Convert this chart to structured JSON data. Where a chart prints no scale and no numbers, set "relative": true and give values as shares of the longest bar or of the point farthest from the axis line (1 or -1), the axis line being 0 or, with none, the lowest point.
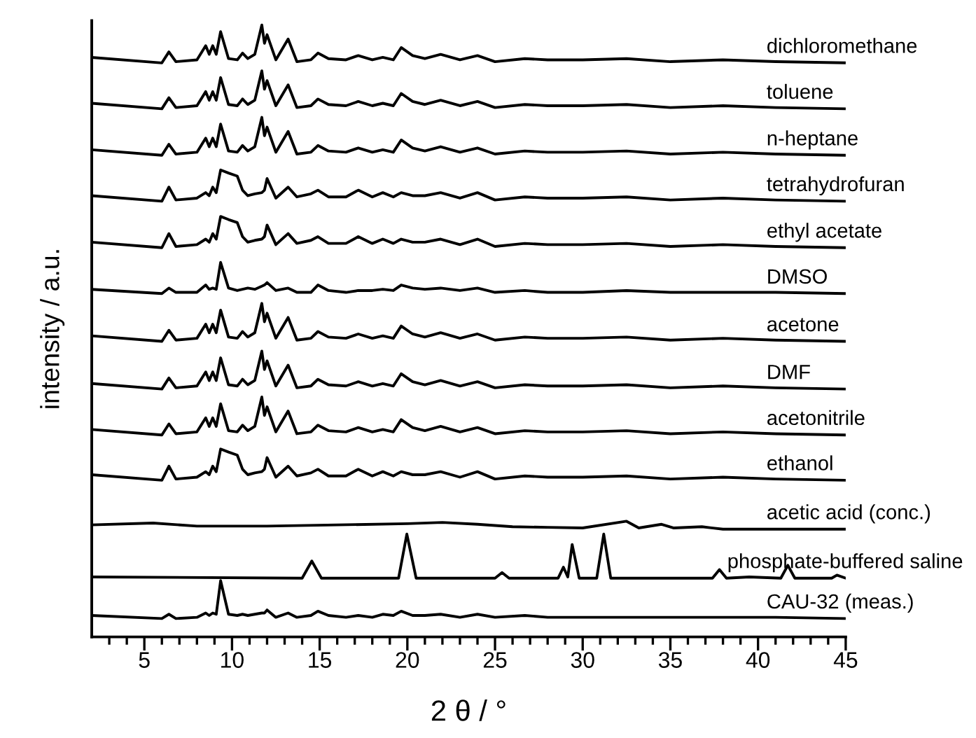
{
  "chart_data": {
    "type": "line",
    "relative": true,
    "xlabel": "2 θ / °",
    "ylabel": "intensity / a.u.",
    "xlim": [
      2,
      45
    ],
    "xticks": [
      {
        "value": 3,
        "label": null
      },
      {
        "value": 4,
        "label": null
      },
      5,
      {
        "value": 6,
        "label": null
      },
      {
        "value": 7,
        "label": null
      },
      {
        "value": 8,
        "label": null
      },
      {
        "value": 9,
        "label": null
      },
      10,
      {
        "value": 11,
        "label": null
      },
      {
        "value": 12,
        "label": null
      },
      {
        "value": 13,
        "label": null
      },
      {
        "value": 14,
        "label": null
      },
      15,
      {
        "value": 16,
        "label": null
      },
      {
        "value": 17,
        "label": null
      },
      {
        "value": 18,
        "label": null
      },
      {
        "value": 19,
        "label": null
      },
      20,
      {
        "value": 21,
        "label": null
      },
      {
        "value": 22,
        "label": null
      },
      {
        "value": 23,
        "label": null
      },
      {
        "value": 24,
        "label": null
      },
      25,
      {
        "value": 26,
        "label": null
      },
      {
        "value": 27,
        "label": null
      },
      {
        "value": 28,
        "label": null
      },
      {
        "value": 29,
        "label": null
      },
      30,
      {
        "value": 31,
        "label": null
      },
      {
        "value": 32,
        "label": null
      },
      {
        "value": 33,
        "label": null
      },
      {
        "value": 34,
        "label": null
      },
      35,
      {
        "value": 36,
        "label": null
      },
      {
        "value": 37,
        "label": null
      },
      {
        "value": 38,
        "label": null
      },
      {
        "value": 39,
        "label": null
      },
      40,
      {
        "value": 41,
        "label": null
      },
      {
        "value": 42,
        "label": null
      },
      {
        "value": 43,
        "label": null
      },
      {
        "value": 44,
        "label": null
      },
      45
    ],
    "x": [
      2,
      6.0,
      6.4,
      6.8,
      8.0,
      8.5,
      8.7,
      8.9,
      9.1,
      9.35,
      9.8,
      10.3,
      10.6,
      10.9,
      11.3,
      11.7,
      11.85,
      12.0,
      12.5,
      13.2,
      13.7,
      14.5,
      14.9,
      15.5,
      16.5,
      17.2,
      18.0,
      18.6,
      19.2,
      19.65,
      20.3,
      21.0,
      21.9,
      23.0,
      24.0,
      25.0,
      26.7,
      28.0,
      30.0,
      32.5,
      35.0,
      38.0,
      41.0,
      45.0
    ],
    "series": [
      {
        "name": "dichloromethane",
        "color": "#000000",
        "values": [
          0.947,
          0.938,
          0.956,
          0.94,
          0.943,
          0.966,
          0.952,
          0.966,
          0.952,
          0.989,
          0.945,
          0.943,
          0.954,
          0.945,
          0.952,
          1.0,
          0.97,
          0.984,
          0.943,
          0.977,
          0.94,
          0.943,
          0.954,
          0.945,
          0.943,
          0.95,
          0.943,
          0.947,
          0.943,
          0.963,
          0.95,
          0.945,
          0.952,
          0.943,
          0.95,
          0.94,
          0.945,
          0.943,
          0.943,
          0.945,
          0.94,
          0.943,
          0.94,
          0.938
        ]
      },
      {
        "name": "toluene",
        "color": "#000000",
        "values": [
          0.872,
          0.863,
          0.881,
          0.865,
          0.868,
          0.891,
          0.877,
          0.891,
          0.877,
          0.914,
          0.87,
          0.868,
          0.879,
          0.87,
          0.877,
          0.925,
          0.895,
          0.909,
          0.868,
          0.902,
          0.865,
          0.868,
          0.879,
          0.87,
          0.868,
          0.875,
          0.868,
          0.872,
          0.868,
          0.888,
          0.875,
          0.87,
          0.877,
          0.868,
          0.875,
          0.865,
          0.87,
          0.868,
          0.868,
          0.87,
          0.865,
          0.868,
          0.865,
          0.863
        ]
      },
      {
        "name": "n-heptane",
        "color": "#000000",
        "values": [
          0.796,
          0.787,
          0.805,
          0.789,
          0.792,
          0.815,
          0.801,
          0.815,
          0.801,
          0.838,
          0.794,
          0.792,
          0.803,
          0.794,
          0.801,
          0.849,
          0.819,
          0.833,
          0.792,
          0.826,
          0.789,
          0.792,
          0.803,
          0.794,
          0.792,
          0.799,
          0.792,
          0.796,
          0.792,
          0.812,
          0.799,
          0.794,
          0.801,
          0.792,
          0.799,
          0.789,
          0.794,
          0.792,
          0.792,
          0.794,
          0.789,
          0.792,
          0.789,
          0.787
        ]
      },
      {
        "name": "tetrahydrofuran",
        "color": "#000000",
        "values": [
          0.721,
          0.712,
          0.735,
          0.714,
          0.717,
          0.726,
          0.721,
          0.735,
          0.726,
          0.763,
          0.758,
          0.753,
          0.73,
          0.721,
          0.724,
          0.726,
          0.73,
          0.749,
          0.717,
          0.735,
          0.719,
          0.724,
          0.73,
          0.719,
          0.719,
          0.73,
          0.719,
          0.726,
          0.719,
          0.726,
          0.721,
          0.721,
          0.726,
          0.717,
          0.726,
          0.714,
          0.719,
          0.717,
          0.717,
          0.719,
          0.714,
          0.717,
          0.714,
          0.712
        ]
      },
      {
        "name": "ethyl acetate",
        "color": "#000000",
        "values": [
          0.645,
          0.636,
          0.659,
          0.638,
          0.641,
          0.65,
          0.645,
          0.659,
          0.65,
          0.687,
          0.682,
          0.677,
          0.654,
          0.645,
          0.648,
          0.65,
          0.654,
          0.673,
          0.641,
          0.659,
          0.643,
          0.648,
          0.654,
          0.643,
          0.643,
          0.654,
          0.643,
          0.65,
          0.643,
          0.65,
          0.645,
          0.645,
          0.65,
          0.641,
          0.65,
          0.638,
          0.643,
          0.641,
          0.641,
          0.643,
          0.638,
          0.641,
          0.638,
          0.636
        ]
      },
      {
        "name": "DMSO",
        "color": "#000000",
        "values": [
          0.568,
          0.561,
          0.57,
          0.563,
          0.563,
          0.575,
          0.568,
          0.57,
          0.568,
          0.612,
          0.57,
          0.566,
          0.568,
          0.57,
          0.568,
          0.573,
          0.575,
          0.579,
          0.566,
          0.57,
          0.563,
          0.563,
          0.575,
          0.566,
          0.563,
          0.566,
          0.566,
          0.568,
          0.566,
          0.575,
          0.57,
          0.568,
          0.57,
          0.566,
          0.57,
          0.563,
          0.566,
          0.563,
          0.563,
          0.566,
          0.563,
          0.563,
          0.563,
          0.561
        ]
      },
      {
        "name": "acetone",
        "color": "#000000",
        "values": [
          0.492,
          0.483,
          0.501,
          0.485,
          0.488,
          0.511,
          0.497,
          0.511,
          0.497,
          0.534,
          0.49,
          0.488,
          0.499,
          0.49,
          0.497,
          0.545,
          0.515,
          0.529,
          0.488,
          0.522,
          0.485,
          0.488,
          0.499,
          0.49,
          0.488,
          0.495,
          0.488,
          0.492,
          0.488,
          0.508,
          0.495,
          0.49,
          0.497,
          0.488,
          0.495,
          0.485,
          0.49,
          0.488,
          0.488,
          0.49,
          0.485,
          0.488,
          0.485,
          0.483
        ]
      },
      {
        "name": "DMF",
        "color": "#000000",
        "values": [
          0.414,
          0.405,
          0.423,
          0.407,
          0.41,
          0.433,
          0.419,
          0.433,
          0.419,
          0.456,
          0.412,
          0.41,
          0.421,
          0.412,
          0.419,
          0.467,
          0.437,
          0.451,
          0.41,
          0.444,
          0.407,
          0.41,
          0.421,
          0.412,
          0.41,
          0.417,
          0.41,
          0.414,
          0.41,
          0.43,
          0.417,
          0.412,
          0.419,
          0.41,
          0.417,
          0.407,
          0.412,
          0.41,
          0.41,
          0.412,
          0.407,
          0.41,
          0.407,
          0.405
        ]
      },
      {
        "name": "acetonitrile",
        "color": "#000000",
        "values": [
          0.339,
          0.33,
          0.348,
          0.332,
          0.335,
          0.358,
          0.344,
          0.358,
          0.344,
          0.381,
          0.337,
          0.335,
          0.346,
          0.337,
          0.344,
          0.392,
          0.362,
          0.376,
          0.335,
          0.369,
          0.332,
          0.335,
          0.346,
          0.337,
          0.335,
          0.342,
          0.335,
          0.339,
          0.335,
          0.355,
          0.342,
          0.337,
          0.344,
          0.335,
          0.342,
          0.332,
          0.337,
          0.335,
          0.335,
          0.337,
          0.332,
          0.335,
          0.332,
          0.33
        ]
      },
      {
        "name": "ethanol",
        "color": "#000000",
        "values": [
          0.265,
          0.256,
          0.279,
          0.258,
          0.261,
          0.27,
          0.265,
          0.279,
          0.27,
          0.307,
          0.302,
          0.297,
          0.274,
          0.265,
          0.268,
          0.27,
          0.274,
          0.293,
          0.261,
          0.279,
          0.263,
          0.268,
          0.274,
          0.263,
          0.263,
          0.274,
          0.263,
          0.27,
          0.263,
          0.27,
          0.265,
          0.265,
          0.27,
          0.261,
          0.27,
          0.258,
          0.263,
          0.261,
          0.261,
          0.263,
          0.258,
          0.261,
          0.258,
          0.256
        ]
      },
      {
        "name": "acetic acid (conc.)",
        "color": "#000000",
        "x": [
          2,
          5.5,
          8,
          12,
          16,
          20,
          22,
          24,
          26,
          28,
          30,
          32.5,
          33.2,
          34.5,
          35.2,
          36.8,
          38,
          41,
          45
        ],
        "values": [
          0.183,
          0.186,
          0.181,
          0.181,
          0.183,
          0.185,
          0.187,
          0.184,
          0.18,
          0.179,
          0.178,
          0.189,
          0.178,
          0.184,
          0.178,
          0.18,
          0.176,
          0.176,
          0.176
        ]
      },
      {
        "name": "phosphate-buffered saline",
        "color": "#000000",
        "x": [
          2,
          14.0,
          14.55,
          15.1,
          19.5,
          19.97,
          20.5,
          25.0,
          25.4,
          25.8,
          28.6,
          28.9,
          29.15,
          29.4,
          29.8,
          30.8,
          31.2,
          31.6,
          37.4,
          37.8,
          38.2,
          39.5,
          41.3,
          41.7,
          42.1,
          44.2,
          44.5,
          45
        ],
        "values": [
          0.098,
          0.096,
          0.124,
          0.096,
          0.096,
          0.168,
          0.096,
          0.096,
          0.105,
          0.096,
          0.096,
          0.114,
          0.098,
          0.151,
          0.096,
          0.096,
          0.168,
          0.096,
          0.096,
          0.11,
          0.096,
          0.098,
          0.096,
          0.117,
          0.096,
          0.096,
          0.101,
          0.096
        ]
      },
      {
        "name": "CAU-32 (meas.)",
        "color": "#000000",
        "values": [
          0.035,
          0.03,
          0.037,
          0.03,
          0.032,
          0.039,
          0.035,
          0.039,
          0.037,
          0.092,
          0.037,
          0.035,
          0.037,
          0.035,
          0.037,
          0.039,
          0.039,
          0.044,
          0.032,
          0.039,
          0.032,
          0.035,
          0.042,
          0.035,
          0.032,
          0.035,
          0.032,
          0.037,
          0.035,
          0.042,
          0.035,
          0.035,
          0.037,
          0.032,
          0.037,
          0.032,
          0.035,
          0.032,
          0.032,
          0.032,
          0.032,
          0.032,
          0.032,
          0.03
        ]
      }
    ]
  }
}
